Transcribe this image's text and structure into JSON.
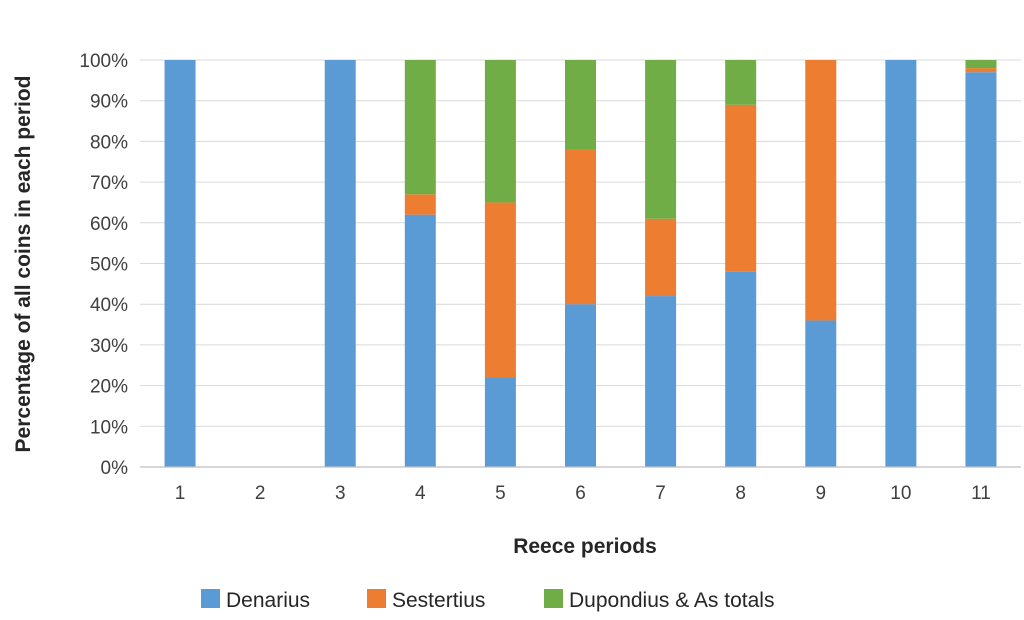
{
  "chart_data": {
    "type": "bar",
    "stacked": true,
    "xlabel": "Reece periods",
    "ylabel": "Percentage of all coins in each period",
    "ylim": [
      0,
      100
    ],
    "y_ticks": [
      "0%",
      "10%",
      "20%",
      "30%",
      "40%",
      "50%",
      "60%",
      "70%",
      "80%",
      "90%",
      "100%"
    ],
    "grid": true,
    "legend_position": "bottom",
    "categories": [
      "1",
      "2",
      "3",
      "4",
      "5",
      "6",
      "7",
      "8",
      "9",
      "10",
      "11"
    ],
    "series": [
      {
        "name": "Denarius",
        "color": "#5B9BD5",
        "values": [
          100,
          0,
          100,
          62,
          22,
          40,
          42,
          48,
          36,
          100,
          97
        ]
      },
      {
        "name": "Sestertius",
        "color": "#ED7D31",
        "values": [
          0,
          0,
          0,
          5,
          43,
          38,
          19,
          41,
          64,
          0,
          1
        ]
      },
      {
        "name": "Dupondius & As totals",
        "color": "#70AD47",
        "values": [
          0,
          0,
          0,
          33,
          35,
          22,
          39,
          11,
          0,
          0,
          2
        ]
      }
    ]
  }
}
